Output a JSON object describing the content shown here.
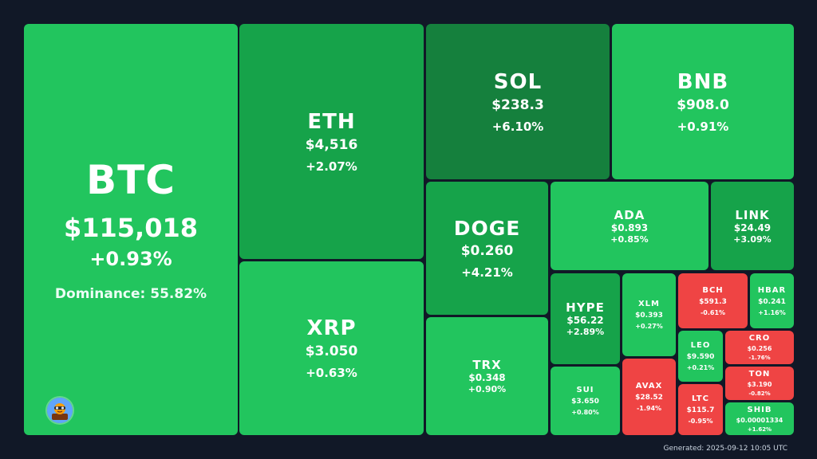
{
  "tiles": {
    "btc": {
      "symbol": "BTC",
      "price": "$115,018",
      "change": "+0.93%",
      "dominance": "Dominance: 55.82%"
    },
    "eth": {
      "symbol": "ETH",
      "price": "$4,516",
      "change": "+2.07%"
    },
    "xrp": {
      "symbol": "XRP",
      "price": "$3.050",
      "change": "+0.63%"
    },
    "sol": {
      "symbol": "SOL",
      "price": "$238.3",
      "change": "+6.10%"
    },
    "bnb": {
      "symbol": "BNB",
      "price": "$908.0",
      "change": "+0.91%"
    },
    "doge": {
      "symbol": "DOGE",
      "price": "$0.260",
      "change": "+4.21%"
    },
    "trx": {
      "symbol": "TRX",
      "price": "$0.348",
      "change": "+0.90%"
    },
    "ada": {
      "symbol": "ADA",
      "price": "$0.893",
      "change": "+0.85%"
    },
    "link": {
      "symbol": "LINK",
      "price": "$24.49",
      "change": "+3.09%"
    },
    "hype": {
      "symbol": "HYPE",
      "price": "$56.22",
      "change": "+2.89%"
    },
    "xlm": {
      "symbol": "XLM",
      "price": "$0.393",
      "change": "+0.27%"
    },
    "bch": {
      "symbol": "BCH",
      "price": "$591.3",
      "change": "-0.61%"
    },
    "hbar": {
      "symbol": "HBAR",
      "price": "$0.241",
      "change": "+1.16%"
    },
    "sui": {
      "symbol": "SUI",
      "price": "$3.650",
      "change": "+0.80%"
    },
    "avax": {
      "symbol": "AVAX",
      "price": "$28.52",
      "change": "-1.94%"
    },
    "leo": {
      "symbol": "LEO",
      "price": "$9.590",
      "change": "+0.21%"
    },
    "cro": {
      "symbol": "CRO",
      "price": "$0.256",
      "change": "-1.76%"
    },
    "ton": {
      "symbol": "TON",
      "price": "$3.190",
      "change": "-0.82%"
    },
    "ltc": {
      "symbol": "LTC",
      "price": "$115.7",
      "change": "-0.95%"
    },
    "shib": {
      "symbol": "SHIB",
      "price": "$0.00001334",
      "change": "+1.62%"
    }
  },
  "footer": {
    "generated": "Generated: 2025-09-12 10:05 UTC"
  },
  "colors": {
    "background": "#111827",
    "green_light": "#22c55e",
    "green_mid": "#16a34a",
    "green_dark": "#15803d",
    "red": "#ef4444"
  },
  "icons": {
    "avatar": "mascot-avatar-icon"
  }
}
